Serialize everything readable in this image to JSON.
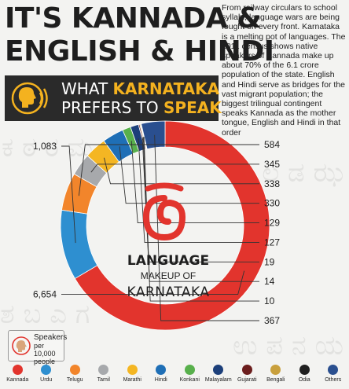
{
  "headline": {
    "line1": "IT'S KANNADA &",
    "line2": "ENGLISH & HINDI"
  },
  "intro": "From railway circulars to school syllabi, language wars are being fought on every front. Karnataka is a melting pot of languages. The 2011 census shows native speakers of Kannada make up about 70% of the 6.1 crore population of the state. English and Hindi serve as bridges for the vast migrant population; the biggest trilingual contingent speaks Kannada as the mother tongue, English and Hindi in that order",
  "banner": {
    "part1": "WHAT ",
    "part2": "KARNATAKA",
    "part3": "PREFERS TO ",
    "part4": "SPEAK",
    "icon": "speaking-head-icon"
  },
  "center": {
    "symbol": "ಠ",
    "title": "LANGUAGE",
    "subtitle": "MAKEUP OF",
    "state": "KARNATAKA"
  },
  "unit": {
    "line1": "Speakers",
    "line2": "per 10,000",
    "line3": "people",
    "icon": "speaking-head-icon"
  },
  "background_glyphs": [
    "ಕ ಠ ರ ಮ",
    "ಅ ಲ ಡ ಝ",
    "ಶ ಬ ಎ ಗ",
    "ಉ ಪ ನ ಯ"
  ],
  "colors": {
    "Kannada": "#e2342d",
    "Urdu": "#2e8fd0",
    "Telugu": "#f2852b",
    "Tamil": "#a7a9ac",
    "Marathi": "#f4b623",
    "Hindi": "#1f6fb6",
    "Konkani": "#58b04c",
    "Malayalam": "#1c3f7a",
    "Gujarati": "#6b1d1d",
    "Bengali": "#c9a03d",
    "Odia": "#202020",
    "Others": "#2a4f8f"
  },
  "chart_data": {
    "type": "pie",
    "title": "LANGUAGE MAKEUP OF KARNATAKA",
    "unit": "Speakers per 10,000 people",
    "categories": [
      "Kannada",
      "Urdu",
      "Telugu",
      "Tamil",
      "Marathi",
      "Hindi",
      "Konkani",
      "Malayalam",
      "Gujarati",
      "Bengali",
      "Odia",
      "Others"
    ],
    "values": [
      6654,
      1083,
      584,
      345,
      338,
      330,
      129,
      127,
      19,
      14,
      10,
      367
    ],
    "value_labels": [
      "6,654",
      "1,083",
      "584",
      "345",
      "338",
      "330",
      "129",
      "127",
      "19",
      "14",
      "10",
      "367"
    ],
    "label_side": [
      "left",
      "left",
      "right",
      "right",
      "right",
      "right",
      "right",
      "right",
      "right",
      "right",
      "right",
      "right"
    ],
    "legend_position": "bottom"
  }
}
